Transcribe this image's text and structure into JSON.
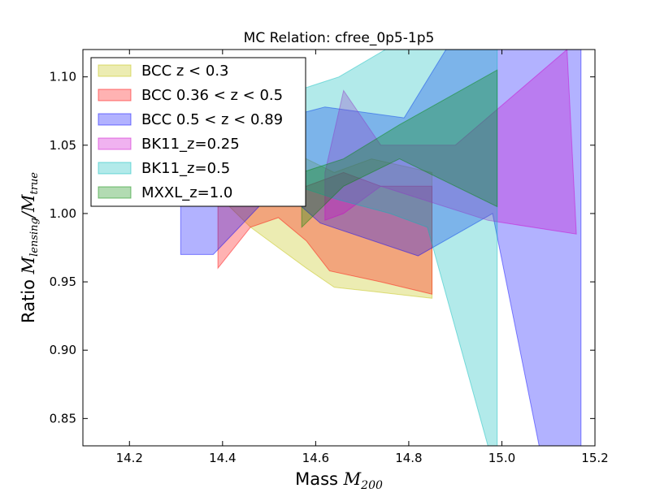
{
  "chart_data": {
    "type": "area",
    "title": "MC Relation: cfree_0p5-1p5",
    "xlabel": {
      "text": "Mass ",
      "math": "M",
      "sub": "200"
    },
    "ylabel": {
      "text": "Ratio ",
      "math1": "M",
      "sub1": "lensing",
      "slash": "/",
      "math2": "M",
      "sub2": "true"
    },
    "xlim": [
      14.1,
      15.2
    ],
    "ylim": [
      0.83,
      1.12
    ],
    "xticks": [
      14.2,
      14.4,
      14.6,
      14.8,
      15.0,
      15.2
    ],
    "xtick_labels": [
      "14.2",
      "14.4",
      "14.6",
      "14.8",
      "15.0",
      "15.2"
    ],
    "yticks": [
      0.85,
      0.9,
      0.95,
      1.0,
      1.05,
      1.1
    ],
    "ytick_labels": [
      "0.85",
      "0.90",
      "0.95",
      "1.00",
      "1.05",
      "1.10"
    ],
    "legend_position": "top-left",
    "series": [
      {
        "name": "BCC z < 0.3",
        "color": "#bfbf00",
        "upper": [
          [
            14.34,
            1.04
          ],
          [
            14.4,
            1.06
          ],
          [
            14.46,
            1.07
          ],
          [
            14.52,
            1.06
          ],
          [
            14.58,
            1.04
          ],
          [
            14.64,
            1.03
          ],
          [
            14.72,
            1.04
          ],
          [
            14.85,
            1.03
          ]
        ],
        "lower": [
          [
            14.34,
            1.02
          ],
          [
            14.4,
            1.01
          ],
          [
            14.46,
            0.99
          ],
          [
            14.52,
            0.975
          ],
          [
            14.58,
            0.96
          ],
          [
            14.64,
            0.946
          ],
          [
            14.72,
            0.943
          ],
          [
            14.85,
            0.938
          ]
        ]
      },
      {
        "name": "BCC 0.36 < z < 0.5",
        "color": "#ff0000",
        "upper": [
          [
            14.39,
            1.04
          ],
          [
            14.46,
            1.05
          ],
          [
            14.52,
            1.03
          ],
          [
            14.58,
            1.02
          ],
          [
            14.66,
            1.03
          ],
          [
            14.74,
            1.02
          ],
          [
            14.85,
            1.02
          ]
        ],
        "lower": [
          [
            14.39,
            0.96
          ],
          [
            14.46,
            0.99
          ],
          [
            14.52,
            0.997
          ],
          [
            14.58,
            0.98
          ],
          [
            14.63,
            0.958
          ],
          [
            14.74,
            0.95
          ],
          [
            14.85,
            0.941
          ]
        ]
      },
      {
        "name": "BCC 0.5 < z < 0.89",
        "color": "#0000ff",
        "upper": [
          [
            14.31,
            1.04
          ],
          [
            14.42,
            1.06
          ],
          [
            14.62,
            1.078
          ],
          [
            14.79,
            1.07
          ],
          [
            14.88,
            1.12
          ],
          [
            15.17,
            1.12
          ]
        ],
        "lower": [
          [
            14.31,
            0.97
          ],
          [
            14.38,
            0.97
          ],
          [
            14.52,
            1.02
          ],
          [
            14.61,
            0.993
          ],
          [
            14.82,
            0.969
          ],
          [
            14.98,
            1.0
          ],
          [
            15.08,
            0.83
          ],
          [
            15.17,
            0.83
          ]
        ]
      },
      {
        "name": "BK11_z=0.25",
        "color": "#cc00cc",
        "upper": [
          [
            14.62,
            1.03
          ],
          [
            14.66,
            1.09
          ],
          [
            14.74,
            1.05
          ],
          [
            14.9,
            1.05
          ],
          [
            15.14,
            1.12
          ]
        ],
        "lower": [
          [
            14.62,
            0.995
          ],
          [
            14.66,
            1.0
          ],
          [
            14.74,
            1.02
          ],
          [
            14.97,
            0.995
          ],
          [
            15.16,
            0.985
          ]
        ]
      },
      {
        "name": "BK11_z=0.5",
        "color": "#00bbbb",
        "upper": [
          [
            14.47,
            1.06
          ],
          [
            14.56,
            1.09
          ],
          [
            14.65,
            1.1
          ],
          [
            14.75,
            1.12
          ],
          [
            14.99,
            1.12
          ]
        ],
        "lower": [
          [
            14.47,
            1.03
          ],
          [
            14.56,
            1.02
          ],
          [
            14.65,
            1.01
          ],
          [
            14.76,
            1.0
          ],
          [
            14.84,
            0.99
          ],
          [
            14.97,
            0.83
          ],
          [
            14.99,
            0.83
          ]
        ]
      },
      {
        "name": "MXXL_z=1.0",
        "color": "#008800",
        "upper": [
          [
            14.57,
            1.03
          ],
          [
            14.66,
            1.04
          ],
          [
            14.78,
            1.065
          ],
          [
            14.99,
            1.105
          ]
        ],
        "lower": [
          [
            14.57,
            0.99
          ],
          [
            14.66,
            1.02
          ],
          [
            14.78,
            1.04
          ],
          [
            14.99,
            1.005
          ]
        ]
      }
    ]
  }
}
